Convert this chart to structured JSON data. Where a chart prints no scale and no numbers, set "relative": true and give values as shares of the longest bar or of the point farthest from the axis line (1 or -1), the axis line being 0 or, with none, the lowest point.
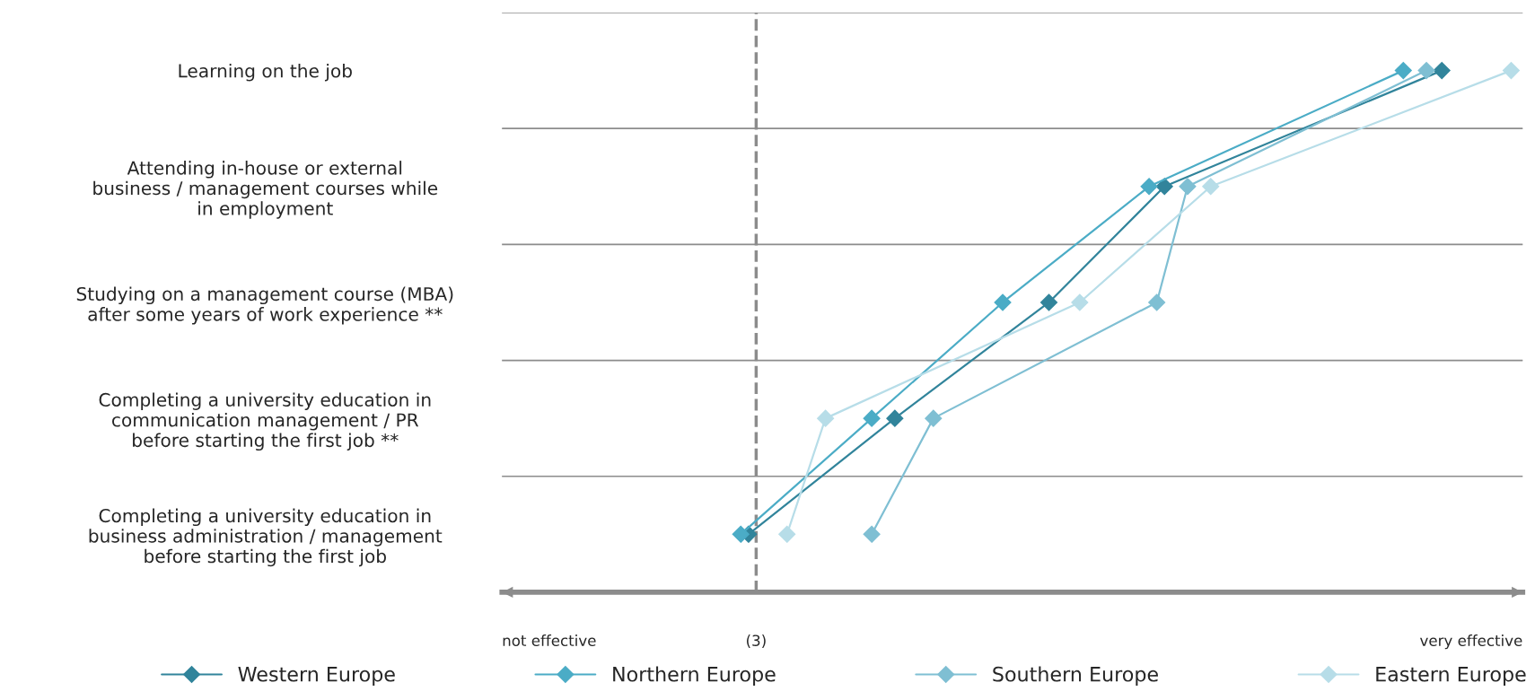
{
  "chart_data": {
    "type": "line",
    "orientation": "horizontal",
    "relative": true,
    "categories": [
      "Learning on the job",
      "Attending in-house or external\nbusiness / management courses while\nin employment",
      "Studying on a management course (MBA)\nafter some years of work experience **",
      "Completing a university education in\ncommunication management / PR\nbefore starting the first job **",
      "Completing a university education in\nbusiness administration / management\nbefore starting the first job"
    ],
    "series": [
      {
        "name": "Western Europe",
        "color": "#31849b",
        "values": [
          0.91,
          0.55,
          0.4,
          0.2,
          0.01
        ]
      },
      {
        "name": "Northern Europe",
        "color": "#4bacc6",
        "values": [
          0.86,
          0.53,
          0.34,
          0.17,
          0.0
        ]
      },
      {
        "name": "Southern Europe",
        "color": "#7fbfd3",
        "values": [
          0.89,
          0.58,
          0.54,
          0.25,
          0.17
        ]
      },
      {
        "name": "Eastern Europe",
        "color": "#b7dde8",
        "values": [
          1.0,
          0.61,
          0.44,
          0.11,
          0.06
        ]
      }
    ],
    "ref_lines": [
      {
        "axis": "x",
        "value": 0.02,
        "color": "#8c8c8c",
        "line_style": "dashed"
      }
    ],
    "annotations": [
      "not effective",
      "(3)",
      "very effective"
    ],
    "grid": "y",
    "legend": "bottom",
    "marker": "diamond",
    "line_style": "solid"
  }
}
